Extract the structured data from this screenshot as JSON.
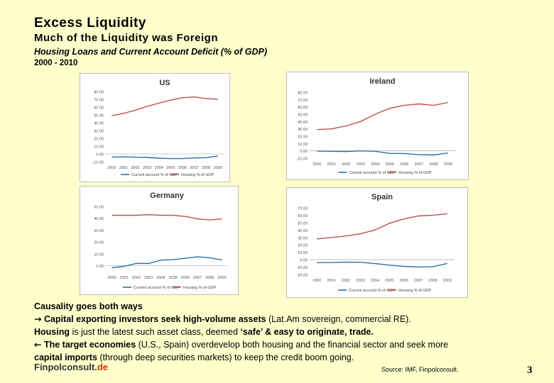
{
  "header": {
    "title": "Excess Liquidity",
    "subtitle": "Much of the Liquidity was Foreign",
    "subtitle2": "Housing Loans and Current Account Deficit (% of GDP)",
    "years": "2000 - 2010"
  },
  "colors": {
    "current_account": "#2e6fa8",
    "housing": "#c0504d",
    "background": "#ffffcc"
  },
  "chart_data": [
    {
      "type": "line",
      "title": "US",
      "x": [
        "2000",
        "2001",
        "2002",
        "2003",
        "2004",
        "2005",
        "2006",
        "2007",
        "2008",
        "2009"
      ],
      "ylim": [
        -10,
        80
      ],
      "yticks": [
        "80.00",
        "70.00",
        "60.00",
        "50.00",
        "40.00",
        "30.00",
        "20.00",
        "10.00",
        "0.00",
        "-10.00"
      ],
      "series": [
        {
          "name": "Current account % of GDP",
          "values": [
            -4,
            -3.8,
            -4.2,
            -4.5,
            -5.5,
            -6,
            -6,
            -5.2,
            -4.8,
            -2.7
          ]
        },
        {
          "name": "Housing % of GDP",
          "values": [
            49,
            52,
            56,
            61,
            65,
            69,
            72,
            73,
            71,
            70
          ]
        }
      ]
    },
    {
      "type": "line",
      "title": "Ireland",
      "x": [
        "2000",
        "2001",
        "2002",
        "2003",
        "2004",
        "2005",
        "2006",
        "2007",
        "2008",
        "2009"
      ],
      "ylim": [
        -10,
        80
      ],
      "yticks": [
        "80.00",
        "70.00",
        "60.00",
        "50.00",
        "40.00",
        "30.00",
        "20.00",
        "10.00",
        "0.00",
        "-10.00"
      ],
      "series": [
        {
          "name": "Current account % of GDP",
          "values": [
            -0.4,
            -0.6,
            -1,
            -0.1,
            -0.6,
            -3.5,
            -3.6,
            -5.3,
            -5.6,
            -2.9
          ]
        },
        {
          "name": "Housing % of GDP",
          "values": [
            29,
            30,
            34,
            40,
            50,
            58,
            62,
            64,
            62,
            66
          ]
        }
      ]
    },
    {
      "type": "line",
      "title": "Germany",
      "x": [
        "2000",
        "2001",
        "2002",
        "2003",
        "2004",
        "2005",
        "2006",
        "2007",
        "2008",
        "2009"
      ],
      "ylim": [
        -5,
        50
      ],
      "yticks": [
        "50.00",
        "40.00",
        "30.00",
        "20.00",
        "10.00",
        "0.00"
      ],
      "series": [
        {
          "name": "Current account % of GDP",
          "values": [
            -1.7,
            -0.5,
            2,
            1.9,
            4.7,
            5.1,
            6.3,
            7.5,
            6.7,
            4.9
          ]
        },
        {
          "name": "Housing % of GDP",
          "values": [
            42.5,
            42.5,
            42.5,
            43,
            42.5,
            42.5,
            41.5,
            39.5,
            38.5,
            39.5
          ]
        }
      ]
    },
    {
      "type": "line",
      "title": "Spain",
      "x": [
        "2000",
        "2001",
        "2002",
        "2003",
        "2004",
        "2005",
        "2006",
        "2007",
        "2008",
        "2009"
      ],
      "ylim": [
        -20,
        70
      ],
      "yticks": [
        "70.00",
        "60.00",
        "50.00",
        "40.00",
        "30.00",
        "20.00",
        "10.00",
        "0.00",
        "-10.00",
        "-20.00"
      ],
      "series": [
        {
          "name": "Current account % of GDP",
          "values": [
            -4,
            -3.9,
            -3.3,
            -3.5,
            -5.3,
            -7.4,
            -9,
            -10,
            -9.6,
            -5.1
          ]
        },
        {
          "name": "Housing % of GDP",
          "values": [
            28,
            30,
            32,
            35,
            40,
            49,
            55,
            59,
            60,
            62
          ]
        }
      ]
    }
  ],
  "body": {
    "line1": "Causality goes both ways",
    "arrow_right": "→",
    "line2_bold": "Capital exporting investors seek high-volume assets",
    "line2_rest": " (Lat.Am sovereign, commercial RE).",
    "line3_bold1": "Housing",
    "line3_mid": " is just the latest such asset class, deemed ",
    "line3_bold2": "‘safe’ & easy to originate, trade.",
    "arrow_left": "←",
    "line4_bold": " The target economies",
    "line4_rest": " (U.S., Spain) overdevelop both housing and the financial sector and seek more",
    "line5_bold": "capital imports",
    "line5_rest": " (through deep securities markets) to keep the credit boom going."
  },
  "footer": {
    "brand_main": "Finpolconsult.",
    "brand_tld": "de",
    "source": "Source: IMF, Finpolconsult.",
    "page_number": "3"
  }
}
